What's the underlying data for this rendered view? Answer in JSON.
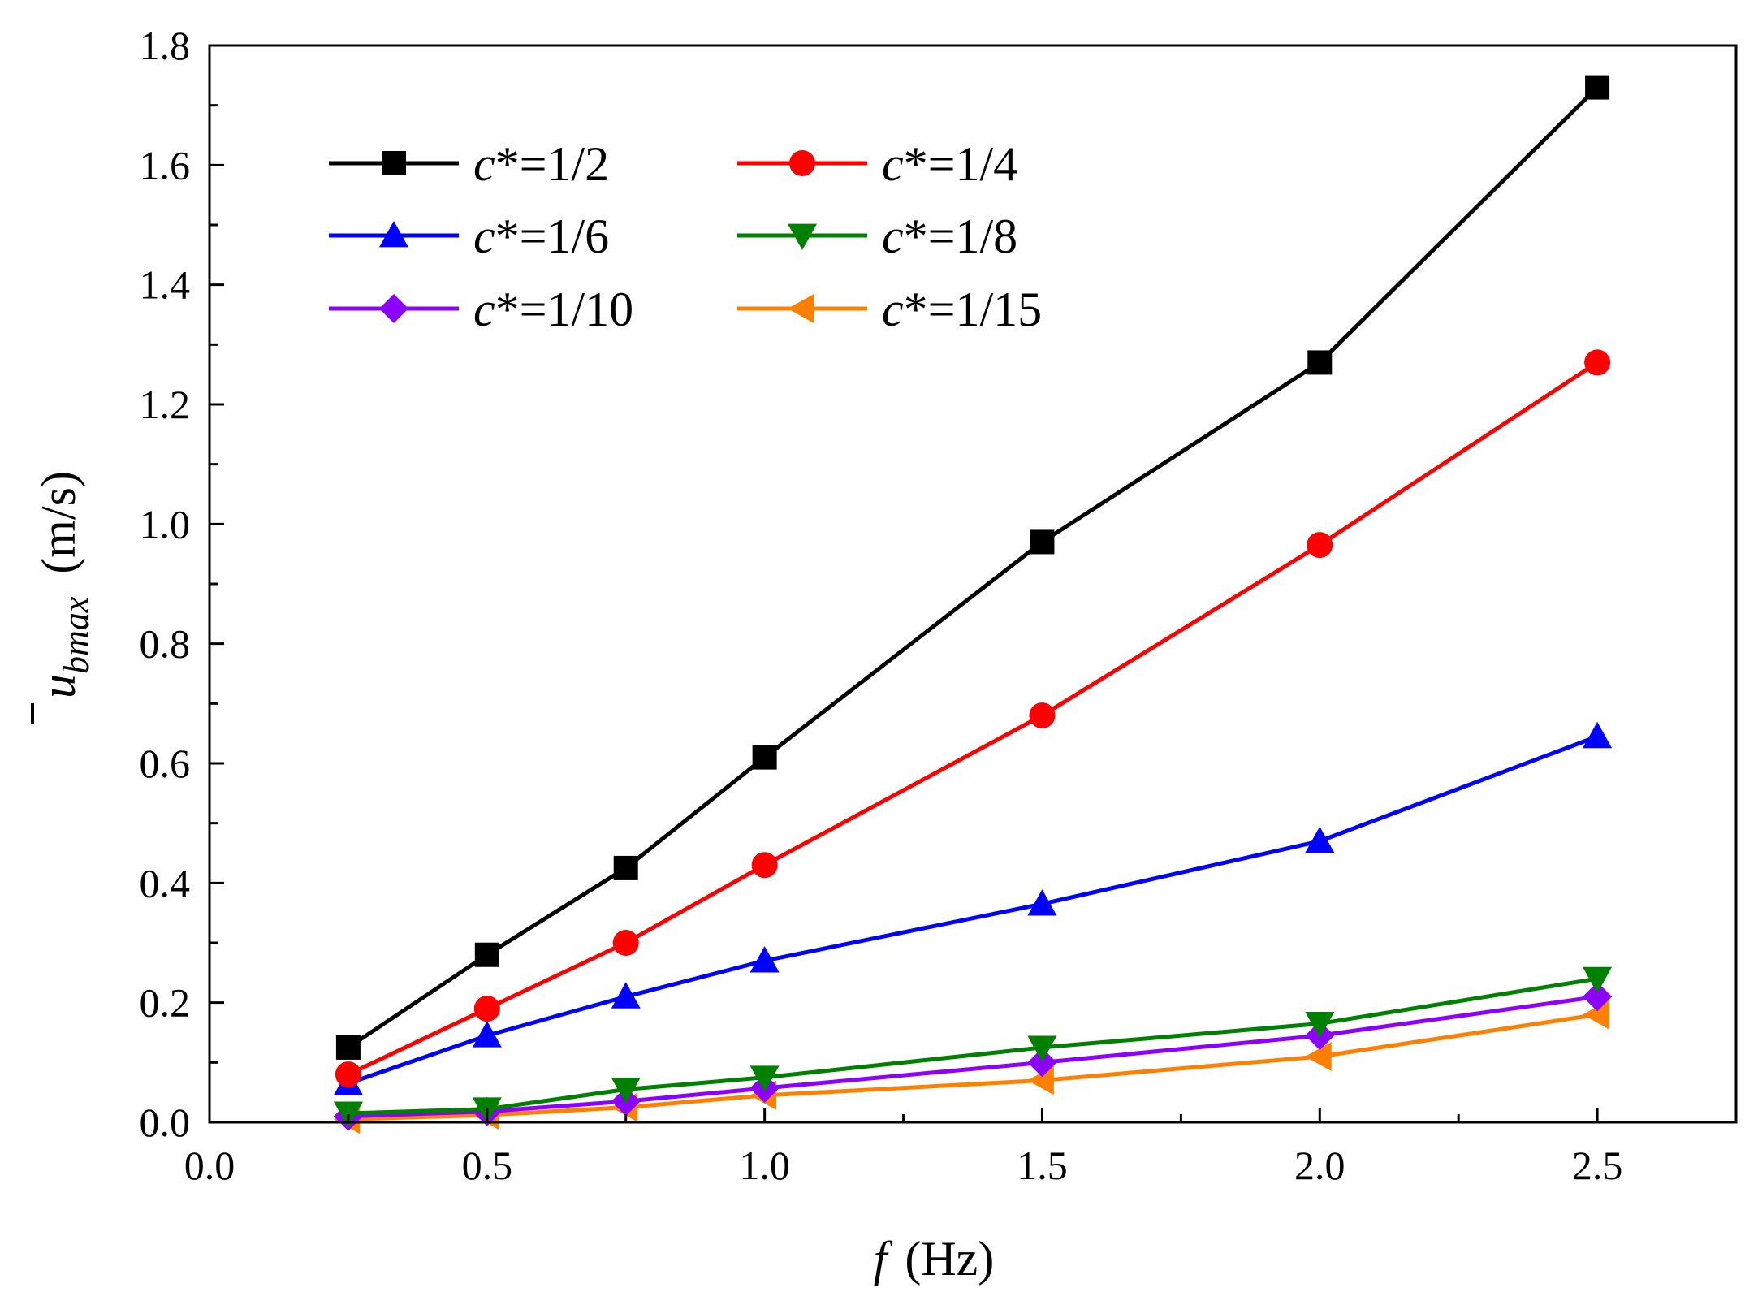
{
  "chart_data": {
    "type": "line",
    "title": "",
    "xlabel_var": "f",
    "xlabel_unit": "(Hz)",
    "ylabel_var": "u",
    "ylabel_sub": "bmax",
    "ylabel_unit": "(m/s)",
    "xlim": [
      0,
      2.75
    ],
    "ylim": [
      0,
      1.8
    ],
    "x_major_ticks": [
      0,
      0.5,
      1.0,
      1.5,
      2.0,
      2.5
    ],
    "x_tick_labels": [
      "0.0",
      "0.5",
      "1.0",
      "1.5",
      "2.0",
      "2.5"
    ],
    "y_major_ticks": [
      0,
      0.2,
      0.4,
      0.6,
      0.8,
      1.0,
      1.2,
      1.4,
      1.6,
      1.8
    ],
    "y_tick_labels": [
      "0.0",
      "0.2",
      "0.4",
      "0.6",
      "0.8",
      "1.0",
      "1.2",
      "1.4",
      "1.6",
      "1.8"
    ],
    "grid": false,
    "legend_position": "top-left",
    "legend_columns": 2,
    "x": [
      0.25,
      0.5,
      0.75,
      1.0,
      1.5,
      2.0,
      2.5
    ],
    "series": [
      {
        "name": "c*=1/2",
        "var": "c",
        "rest": "*=1/2",
        "color": "#000000",
        "marker": "square",
        "values": [
          0.125,
          0.28,
          0.425,
          0.61,
          0.97,
          1.27,
          1.73
        ]
      },
      {
        "name": "c*=1/4",
        "var": "c",
        "rest": "*=1/4",
        "color": "#ff0000",
        "marker": "circle",
        "values": [
          0.08,
          0.19,
          0.3,
          0.43,
          0.68,
          0.965,
          1.27
        ]
      },
      {
        "name": "c*=1/6",
        "var": "c",
        "rest": "*=1/6",
        "color": "#0000ff",
        "marker": "triangle-up",
        "values": [
          0.065,
          0.145,
          0.21,
          0.27,
          0.365,
          0.47,
          0.645
        ]
      },
      {
        "name": "c*=1/8",
        "var": "c",
        "rest": "*=1/8",
        "color": "#008000",
        "marker": "triangle-down",
        "values": [
          0.015,
          0.022,
          0.055,
          0.075,
          0.125,
          0.165,
          0.24
        ]
      },
      {
        "name": "c*=1/10",
        "var": "c",
        "rest": "*=1/10",
        "color": "#8b00ff",
        "marker": "diamond",
        "values": [
          0.01,
          0.018,
          0.035,
          0.057,
          0.1,
          0.145,
          0.21
        ]
      },
      {
        "name": "c*=1/15",
        "var": "c",
        "rest": "*=1/15",
        "color": "#ff8000",
        "marker": "triangle-left",
        "values": [
          0.005,
          0.012,
          0.025,
          0.045,
          0.07,
          0.11,
          0.18
        ]
      }
    ]
  }
}
